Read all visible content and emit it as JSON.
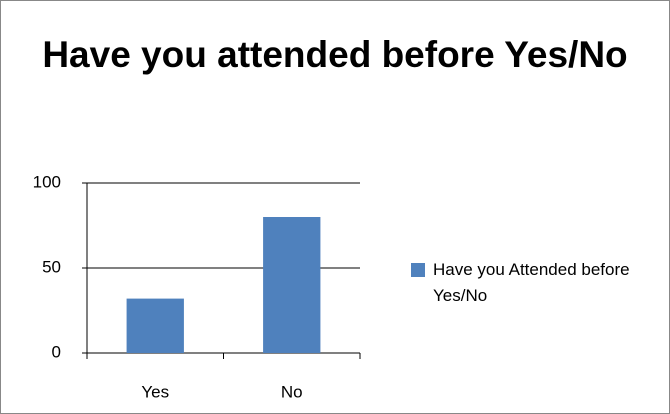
{
  "chart_data": {
    "type": "bar",
    "title": "Have you attended before Yes/No",
    "categories": [
      "Yes",
      "No"
    ],
    "series": [
      {
        "name": "Have you Attended before Yes/No",
        "color": "#4f81bd",
        "values": [
          32,
          80
        ]
      }
    ],
    "ylim": [
      0,
      100
    ],
    "yticks": [
      0,
      50,
      100
    ],
    "grid": true,
    "legend": "right"
  }
}
